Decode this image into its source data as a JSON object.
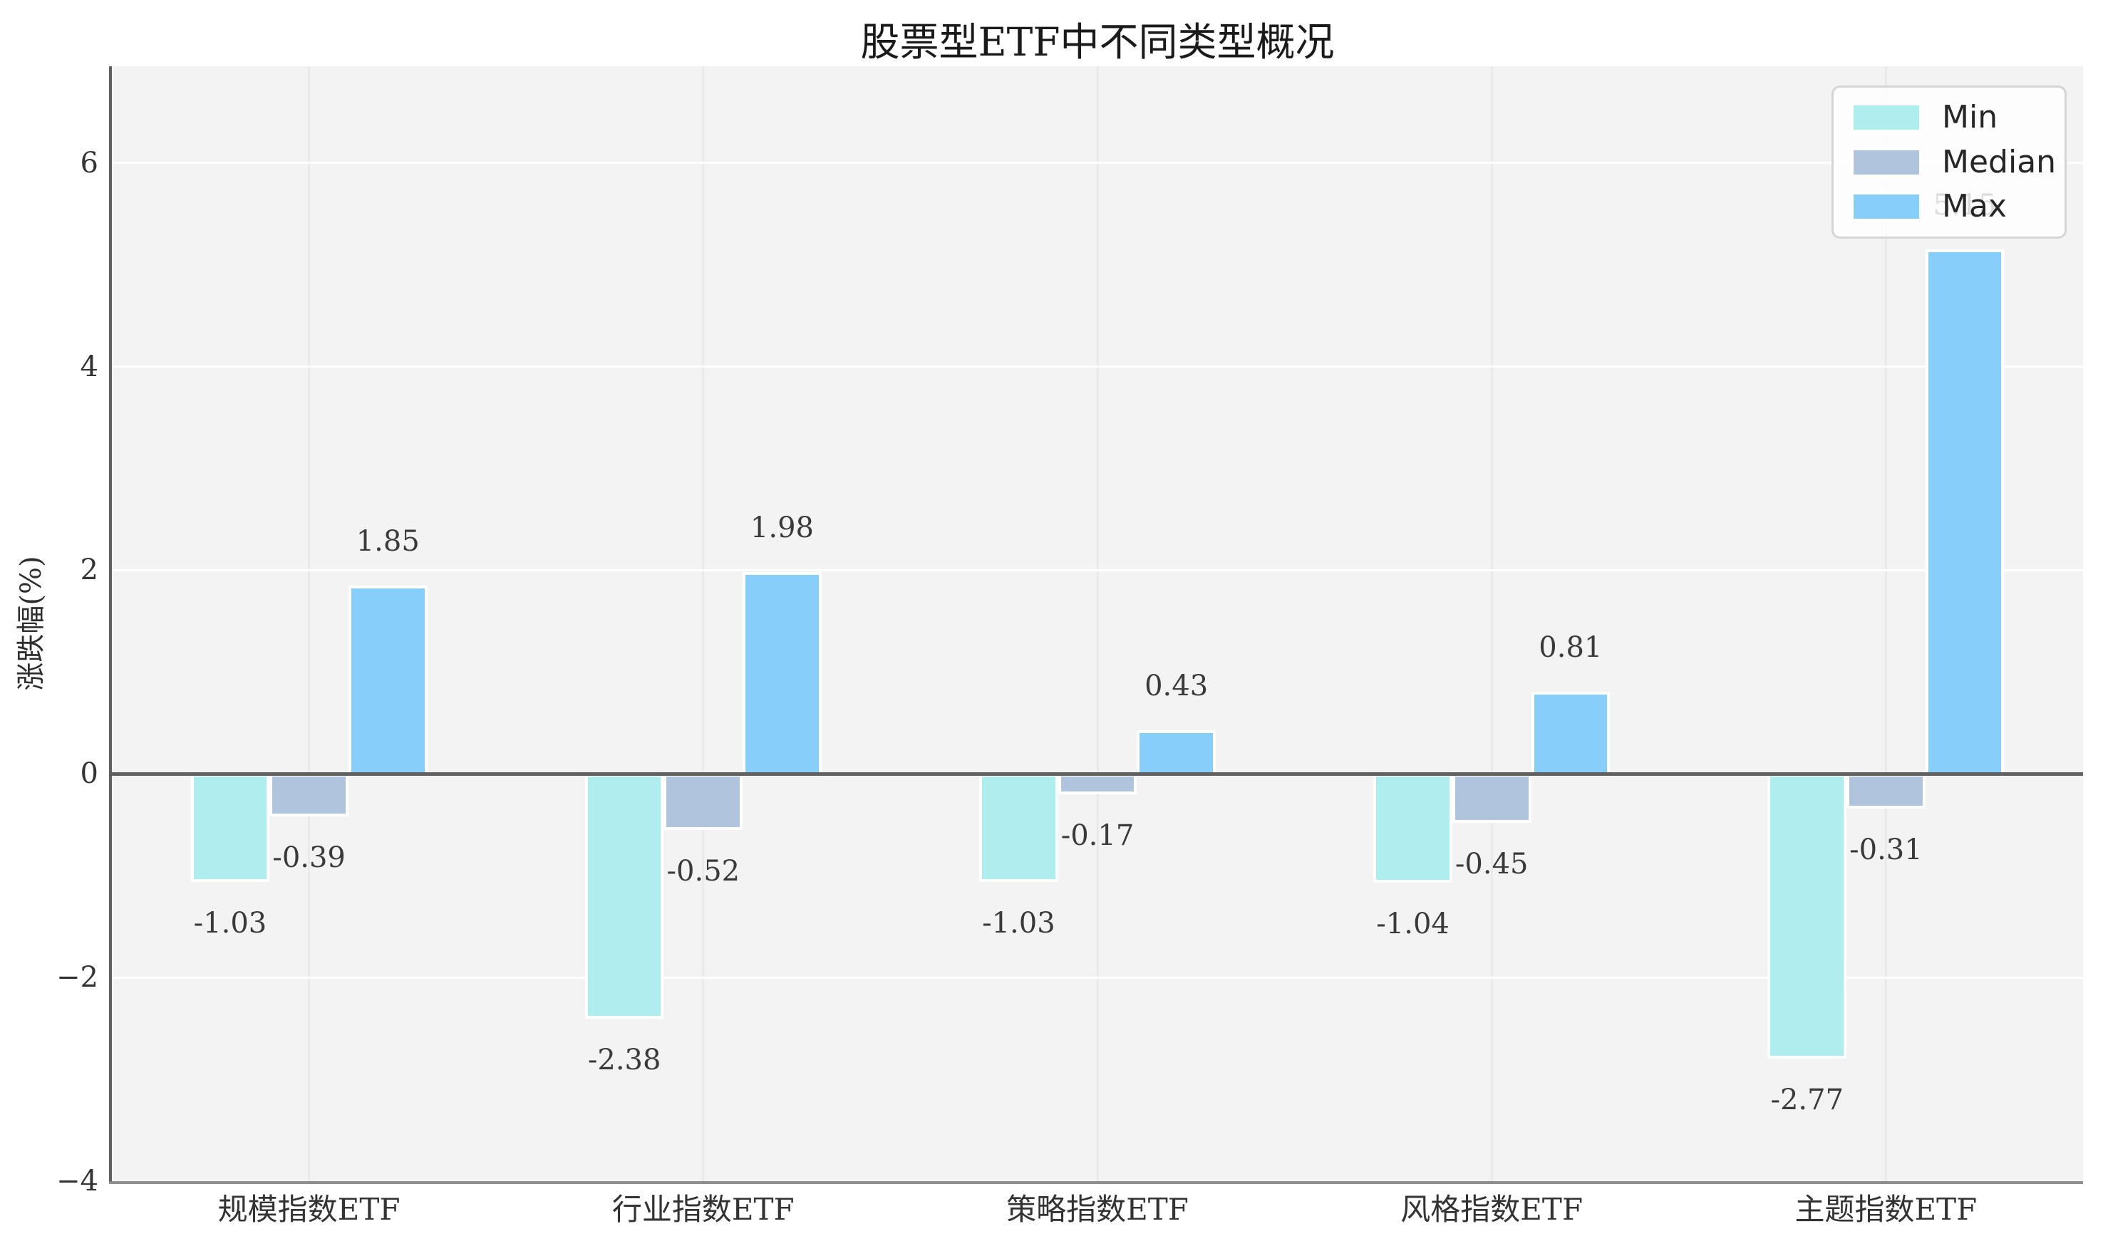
{
  "chart_data": {
    "type": "bar",
    "title": "股票型ETF中不同类型概况",
    "xlabel": "",
    "ylabel": "涨跌幅(%)",
    "categories": [
      "规模指数ETF",
      "行业指数ETF",
      "策略指数ETF",
      "风格指数ETF",
      "主题指数ETF"
    ],
    "series": [
      {
        "name": "Min",
        "color": "#AFEEEE",
        "values": [
          -1.03,
          -2.38,
          -1.03,
          -1.04,
          -2.77
        ]
      },
      {
        "name": "Median",
        "color": "#B0C4DE",
        "values": [
          -0.39,
          -0.52,
          -0.17,
          -0.45,
          -0.31
        ]
      },
      {
        "name": "Max",
        "color": "#87CEFA",
        "values": [
          1.85,
          1.98,
          0.43,
          0.81,
          5.15
        ]
      }
    ],
    "yticks": [
      6,
      4,
      2,
      0,
      -2,
      -4
    ],
    "ylim": [
      -4,
      6.95
    ],
    "grid": true,
    "legend_position": "upper right",
    "legend_labels": [
      "Min",
      "Median",
      "Max"
    ]
  },
  "colors": {
    "outer_bg": "#ffffff",
    "plot_bg": "#f3f3f3",
    "h_grid": "#ffffff",
    "v_grid": "#eaeaea",
    "zero_line": "#616161",
    "left_spine": "#616161",
    "bottom_spine": "#8e8e8e",
    "title_text": "#1a1a1a",
    "tick_text": "#333333",
    "bar_label_text": "#3a3a3a",
    "legend_border": "#d5d5d5",
    "legend_text": "#262626"
  }
}
